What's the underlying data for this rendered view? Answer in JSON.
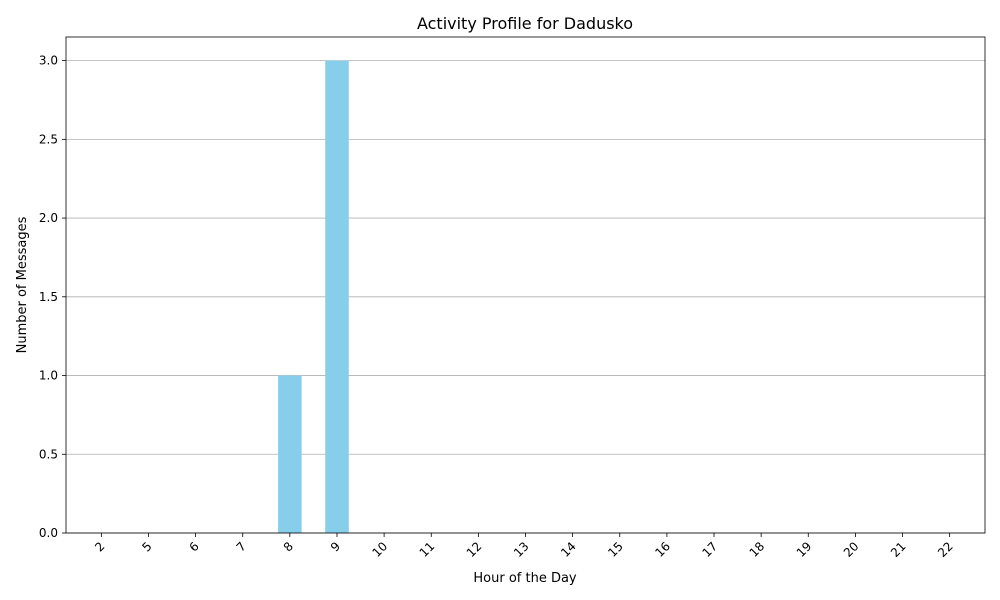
{
  "chart_data": {
    "type": "bar",
    "title": "Activity Profile for Dadusko",
    "xlabel": "Hour of the Day",
    "ylabel": "Number of Messages",
    "categories": [
      "2",
      "5",
      "6",
      "7",
      "8",
      "9",
      "10",
      "11",
      "12",
      "13",
      "14",
      "15",
      "16",
      "17",
      "18",
      "19",
      "20",
      "21",
      "22"
    ],
    "values": [
      0,
      0,
      0,
      0,
      1,
      3,
      0,
      0,
      0,
      0,
      0,
      0,
      0,
      0,
      0,
      0,
      0,
      0,
      0
    ],
    "ylim": [
      0,
      3.15
    ],
    "yticks": [
      "0.0",
      "0.5",
      "1.0",
      "1.5",
      "2.0",
      "2.5",
      "3.0"
    ],
    "grid": "y-axis only",
    "x_tick_rotation": 45,
    "bar_color": "#87ceeb",
    "grid_color": "#b0b0b0",
    "axis_color": "#000000"
  }
}
